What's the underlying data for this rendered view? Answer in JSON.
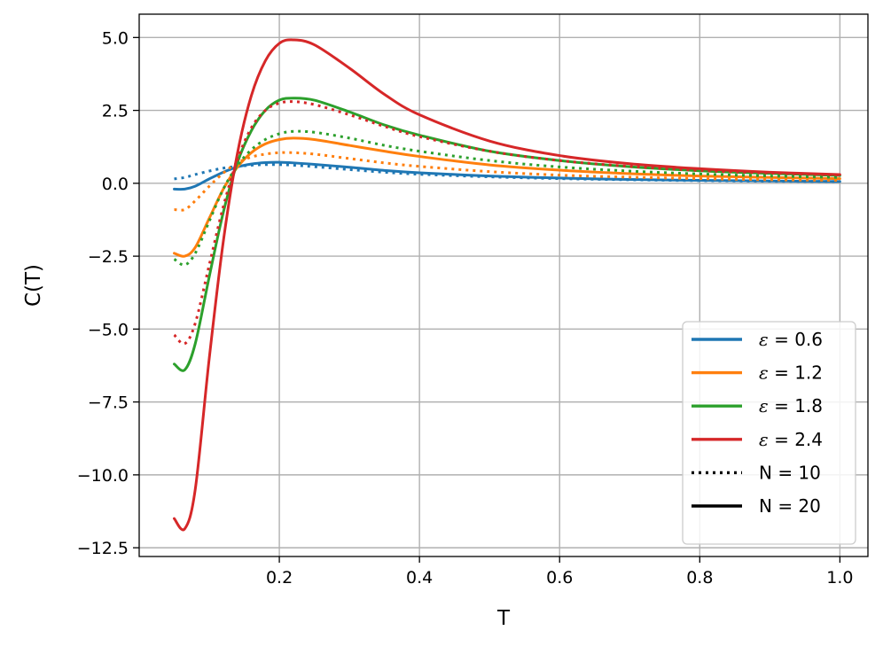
{
  "chart_data": {
    "type": "line",
    "title": "",
    "xlabel": "T",
    "ylabel": "C(T)",
    "xlim": [
      0.0,
      1.04
    ],
    "ylim": [
      -12.8,
      5.8
    ],
    "xticks": [
      0.2,
      0.4,
      0.6,
      0.8,
      1.0
    ],
    "xtick_labels": [
      "0.2",
      "0.4",
      "0.6",
      "0.8",
      "1.0"
    ],
    "yticks": [
      5.0,
      2.5,
      0.0,
      -2.5,
      -5.0,
      -7.5,
      -10.0,
      -12.5
    ],
    "ytick_labels": [
      "5.0",
      "2.5",
      "0.0",
      "−2.5",
      "−5.0",
      "−7.5",
      "−10.0",
      "−12.5"
    ],
    "grid": true,
    "legend_position": "lower-right",
    "legend": [
      {
        "symbol": "ε",
        "label": " = 0.6",
        "color": "#1f77b4",
        "style": "solid"
      },
      {
        "symbol": "ε",
        "label": " = 1.2",
        "color": "#ff7f0e",
        "style": "solid"
      },
      {
        "symbol": "ε",
        "label": " = 1.8",
        "color": "#2ca02c",
        "style": "solid"
      },
      {
        "symbol": "ε",
        "label": " = 2.4",
        "color": "#d62728",
        "style": "solid"
      },
      {
        "symbol": "",
        "label": "N = 10",
        "color": "#000000",
        "style": "dotted"
      },
      {
        "symbol": "",
        "label": "N = 20",
        "color": "#000000",
        "style": "solid"
      }
    ],
    "series": [
      {
        "epsilon": 0.6,
        "N": 10,
        "color": "#1f77b4",
        "style": "dotted",
        "x": [
          0.05,
          0.065,
          0.08,
          0.1,
          0.12,
          0.14,
          0.16,
          0.18,
          0.2,
          0.22,
          0.25,
          0.3,
          0.35,
          0.4,
          0.5,
          0.6,
          0.7,
          0.8,
          0.9,
          1.0
        ],
        "y": [
          0.15,
          0.2,
          0.3,
          0.42,
          0.52,
          0.58,
          0.62,
          0.64,
          0.64,
          0.62,
          0.57,
          0.47,
          0.38,
          0.31,
          0.22,
          0.16,
          0.12,
          0.09,
          0.07,
          0.06
        ]
      },
      {
        "epsilon": 0.6,
        "N": 20,
        "color": "#1f77b4",
        "style": "solid",
        "x": [
          0.05,
          0.065,
          0.08,
          0.1,
          0.12,
          0.14,
          0.16,
          0.18,
          0.2,
          0.22,
          0.25,
          0.3,
          0.35,
          0.4,
          0.5,
          0.6,
          0.7,
          0.8,
          0.9,
          1.0
        ],
        "y": [
          -0.2,
          -0.2,
          -0.1,
          0.15,
          0.38,
          0.56,
          0.66,
          0.71,
          0.72,
          0.7,
          0.65,
          0.55,
          0.44,
          0.36,
          0.25,
          0.18,
          0.13,
          0.1,
          0.08,
          0.06
        ]
      },
      {
        "epsilon": 1.2,
        "N": 10,
        "color": "#ff7f0e",
        "style": "dotted",
        "x": [
          0.05,
          0.065,
          0.08,
          0.1,
          0.12,
          0.14,
          0.16,
          0.18,
          0.2,
          0.22,
          0.25,
          0.3,
          0.35,
          0.4,
          0.5,
          0.6,
          0.7,
          0.8,
          0.9,
          1.0
        ],
        "y": [
          -0.9,
          -0.9,
          -0.6,
          -0.1,
          0.35,
          0.7,
          0.9,
          1.0,
          1.05,
          1.05,
          1.0,
          0.85,
          0.7,
          0.58,
          0.4,
          0.28,
          0.21,
          0.16,
          0.12,
          0.1
        ]
      },
      {
        "epsilon": 1.2,
        "N": 20,
        "color": "#ff7f0e",
        "style": "solid",
        "x": [
          0.05,
          0.065,
          0.08,
          0.1,
          0.12,
          0.14,
          0.16,
          0.18,
          0.2,
          0.22,
          0.25,
          0.3,
          0.35,
          0.4,
          0.5,
          0.6,
          0.7,
          0.8,
          0.9,
          1.0
        ],
        "y": [
          -2.4,
          -2.5,
          -2.2,
          -1.2,
          -0.2,
          0.55,
          1.05,
          1.35,
          1.5,
          1.55,
          1.5,
          1.3,
          1.1,
          0.92,
          0.63,
          0.45,
          0.33,
          0.25,
          0.2,
          0.16
        ]
      },
      {
        "epsilon": 1.8,
        "N": 10,
        "color": "#2ca02c",
        "style": "dotted",
        "x": [
          0.05,
          0.065,
          0.08,
          0.1,
          0.12,
          0.14,
          0.16,
          0.18,
          0.2,
          0.22,
          0.25,
          0.3,
          0.35,
          0.4,
          0.5,
          0.6,
          0.7,
          0.8,
          0.9,
          1.0
        ],
        "y": [
          -2.6,
          -2.8,
          -2.4,
          -1.3,
          -0.2,
          0.6,
          1.15,
          1.5,
          1.7,
          1.78,
          1.75,
          1.55,
          1.3,
          1.1,
          0.78,
          0.56,
          0.42,
          0.32,
          0.25,
          0.2
        ]
      },
      {
        "epsilon": 1.8,
        "N": 20,
        "color": "#2ca02c",
        "style": "solid",
        "x": [
          0.05,
          0.065,
          0.08,
          0.1,
          0.12,
          0.14,
          0.16,
          0.18,
          0.2,
          0.22,
          0.25,
          0.3,
          0.35,
          0.4,
          0.5,
          0.6,
          0.7,
          0.8,
          0.9,
          1.0
        ],
        "y": [
          -6.2,
          -6.4,
          -5.5,
          -3.2,
          -1.0,
          0.7,
          1.8,
          2.5,
          2.85,
          2.92,
          2.85,
          2.45,
          2.0,
          1.65,
          1.1,
          0.78,
          0.57,
          0.43,
          0.34,
          0.27
        ]
      },
      {
        "epsilon": 2.4,
        "N": 10,
        "color": "#d62728",
        "style": "dotted",
        "x": [
          0.05,
          0.065,
          0.08,
          0.1,
          0.12,
          0.14,
          0.16,
          0.18,
          0.2,
          0.22,
          0.25,
          0.3,
          0.35,
          0.4,
          0.5,
          0.6,
          0.7,
          0.8,
          0.9,
          1.0
        ],
        "y": [
          -5.2,
          -5.5,
          -4.8,
          -2.8,
          -0.8,
          0.8,
          1.9,
          2.5,
          2.75,
          2.8,
          2.7,
          2.35,
          1.95,
          1.6,
          1.1,
          0.78,
          0.58,
          0.44,
          0.35,
          0.28
        ]
      },
      {
        "epsilon": 2.4,
        "N": 20,
        "color": "#d62728",
        "style": "solid",
        "x": [
          0.05,
          0.065,
          0.08,
          0.1,
          0.12,
          0.14,
          0.16,
          0.18,
          0.2,
          0.22,
          0.25,
          0.3,
          0.35,
          0.4,
          0.5,
          0.6,
          0.7,
          0.8,
          0.9,
          1.0
        ],
        "y": [
          -11.5,
          -11.85,
          -10.5,
          -6.0,
          -2.0,
          1.0,
          3.0,
          4.2,
          4.8,
          4.92,
          4.75,
          3.95,
          3.05,
          2.35,
          1.45,
          0.95,
          0.67,
          0.5,
          0.38,
          0.3
        ]
      }
    ]
  }
}
